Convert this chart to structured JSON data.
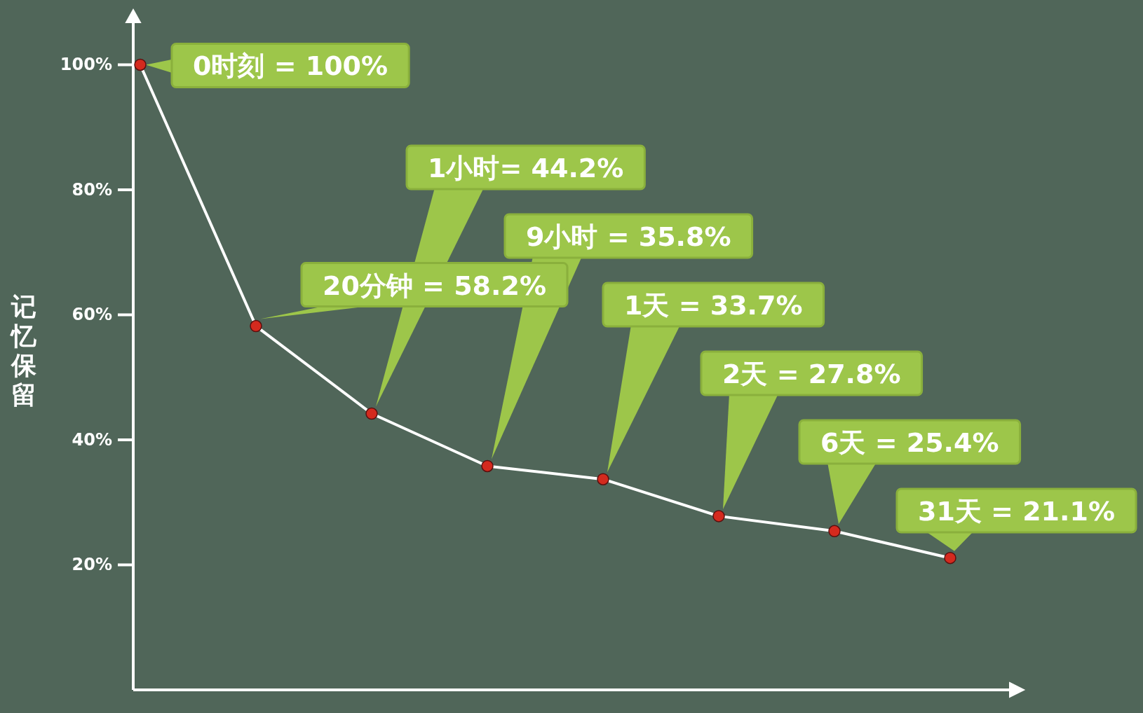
{
  "chart_data": {
    "type": "line",
    "ylabel": "记忆保留",
    "categories": [
      null,
      null,
      null,
      null,
      null,
      null,
      null,
      null
    ],
    "series": [
      {
        "color": "#ffffff",
        "colors": [
          "#d42a1e",
          "#d42a1e",
          "#d42a1e",
          "#d42a1e",
          "#d42a1e",
          "#d42a1e",
          "#d42a1e",
          "#d42a1e"
        ],
        "values": [
          100,
          58.2,
          44.2,
          35.8,
          33.7,
          27.8,
          25.4,
          21.1
        ],
        "value_labels": [
          "0时刻 = 100%",
          "20分钟 = 58.2%",
          "1小时= 44.2%",
          "9小时 = 35.8%",
          "1天 = 33.7%",
          "2天 = 27.8%",
          "6天 = 25.4%",
          "31天 = 21.1%"
        ]
      }
    ],
    "ylim": [
      0,
      107
    ],
    "yticks": [
      {
        "value": 20,
        "label": "20%"
      },
      {
        "value": 40,
        "label": "40%"
      },
      {
        "value": 60,
        "label": "60%"
      },
      {
        "value": 80,
        "label": "80%"
      },
      {
        "value": 100,
        "label": "100%"
      }
    ],
    "marker": "circle",
    "line_style": "solid",
    "grid": false
  }
}
